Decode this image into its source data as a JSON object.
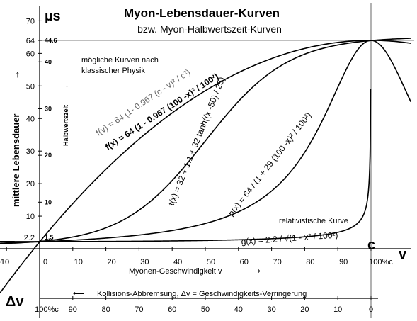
{
  "chart_data": {
    "type": "line",
    "title": "Myon-Lebensdauer-Kurven",
    "subtitle": "bzw. Myon-Halbwertszeit-Kurven",
    "xlabel": "Myonen-Geschwindigkeit  v",
    "ylabel": "mittlere Lebensdauer",
    "y_unit": "µs",
    "y2label": "Halbwertszeit",
    "x_axis_symbol": "v",
    "c_label": "c",
    "delta_v_symbol": "Δv",
    "bottom_label": "Kollisions-Abbremsung,  Δv = Geschwindigkeits-Verringerung",
    "note": [
      "mögliche Kurven nach",
      "klassischer Physik"
    ],
    "relativistic_label": "relativistische Kurve",
    "xlim": [
      -12,
      112
    ],
    "ylim": [
      -18,
      74
    ],
    "x_ticks": [
      "-10",
      "0",
      "10",
      "20",
      "30",
      "40",
      "50",
      "60",
      "70",
      "80",
      "90",
      "100%c"
    ],
    "x_tick_values": [
      -10,
      0,
      10,
      20,
      30,
      40,
      50,
      60,
      70,
      80,
      90,
      100
    ],
    "y_ticks": [
      "10",
      "20",
      "30",
      "40",
      "50",
      "60",
      "70"
    ],
    "y_tick_values": [
      10,
      20,
      30,
      40,
      50,
      60,
      70
    ],
    "y_special_ticks": [
      {
        "label": "64",
        "value": 64
      },
      {
        "label": "2.2",
        "value": 2.2
      }
    ],
    "half_ticks": [
      {
        "label": "44.6",
        "value": 64
      },
      {
        "label": "40",
        "value": 57.4
      },
      {
        "label": "30",
        "value": 43.0
      },
      {
        "label": "20",
        "value": 28.7
      },
      {
        "label": "10",
        "value": 14.3
      },
      {
        "label": "1.5",
        "value": 2.2
      }
    ],
    "bottom_ticks": [
      "100%c",
      "90",
      "80",
      "70",
      "60",
      "50",
      "40",
      "30",
      "20",
      "10",
      "0"
    ],
    "bottom_tick_values": [
      0,
      10,
      20,
      30,
      40,
      50,
      60,
      70,
      80,
      90,
      100
    ],
    "series": [
      {
        "formula": "f(v) = 64 (1- 0.967 (c - v)² / c²)"
      },
      {
        "formula": "f(x) = 64 (1 - 0.967 (100 -x)² / 100²)"
      },
      {
        "formula": "t(x) = 32 + 1.1 + 32 tanh((x -50) / 25)"
      },
      {
        "formula": "p(x) = 64 / (1 + 29 (100 -x)² / 100²)"
      },
      {
        "formula": "g(x) = 2.2 / √(1 - x² / 100²)"
      }
    ]
  }
}
